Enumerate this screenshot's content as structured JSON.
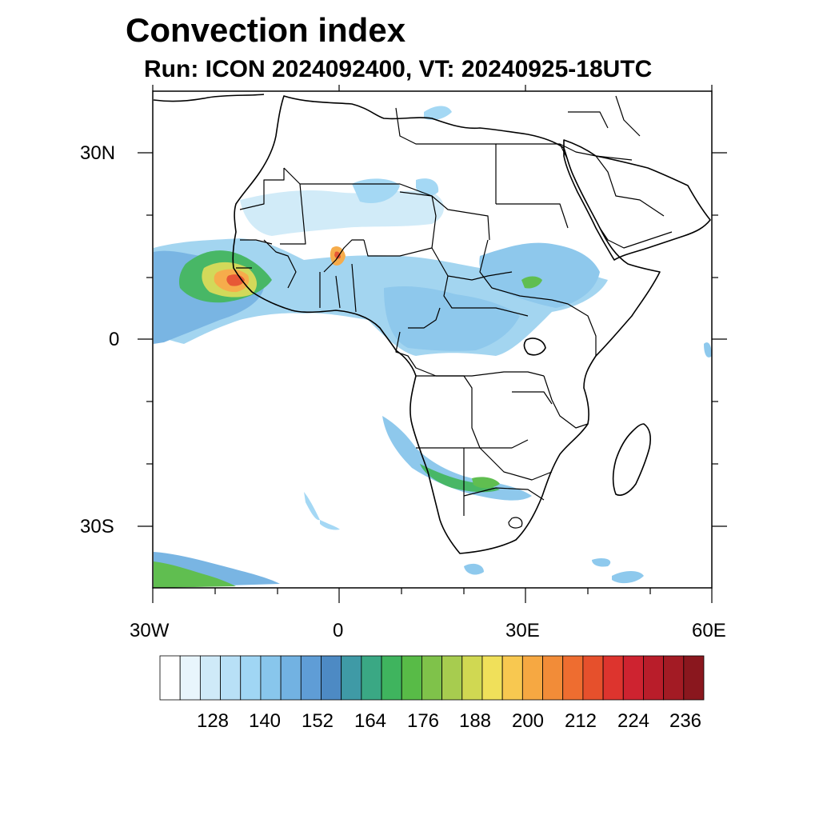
{
  "title": "Convection index",
  "subtitle": "Run: ICON 2024092400,  VT: 20240925-18UTC",
  "map": {
    "lon_range": [
      -30,
      60
    ],
    "lat_range": [
      -40,
      40
    ],
    "lat_tick_labels": [
      "30N",
      "0",
      "30S"
    ],
    "lon_tick_labels": [
      "30W",
      "0",
      "30E",
      "60E"
    ]
  },
  "colorbar": {
    "labels": [
      "128",
      "140",
      "152",
      "164",
      "176",
      "188",
      "200",
      "212",
      "224",
      "236"
    ],
    "colors": [
      "#ffffff",
      "#e8f5fc",
      "#cfeaf8",
      "#b8e0f6",
      "#a0d6f4",
      "#88c6ec",
      "#72b2e2",
      "#5f9dd6",
      "#4d8ac4",
      "#3f9aa6",
      "#3aa884",
      "#3fb45e",
      "#58bb47",
      "#7fc24a",
      "#a7cc4f",
      "#d0d852",
      "#f0e05a",
      "#f8c850",
      "#f6a842",
      "#f28c38",
      "#ee6d30",
      "#e6502c",
      "#dd342e",
      "#ce2330",
      "#b91d2a",
      "#a31b24",
      "#8a171e"
    ]
  },
  "legend_colors": {
    "border": "#000000"
  }
}
